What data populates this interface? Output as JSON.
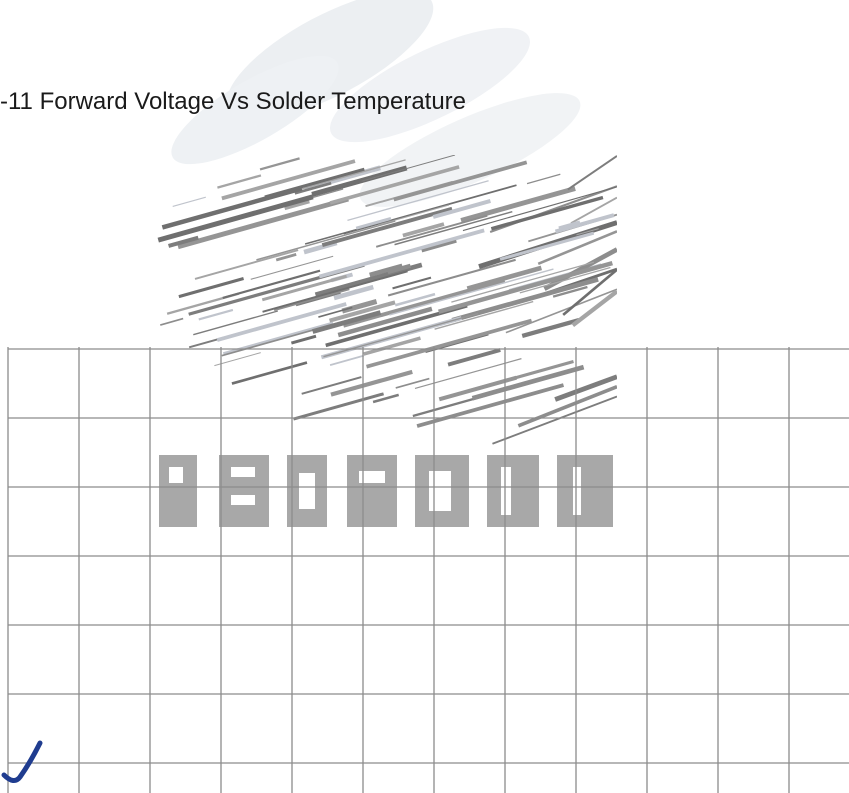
{
  "chart_data": {
    "type": "line",
    "title": "-11 Forward Voltage Vs Solder Temperature",
    "grid": true,
    "grid_columns": 12,
    "grid_rows": 6,
    "series": []
  },
  "colors": {
    "grid_line": "#8c8c8c",
    "watermark": "#e9ecef",
    "logo_gray": "#8a8a8a",
    "curve": "#1f3c8f"
  },
  "icons": {
    "watermark": "leaf-swoosh-watermark",
    "logo": "manufacturer-logo-scan",
    "curve": "partial-curve-stroke"
  }
}
